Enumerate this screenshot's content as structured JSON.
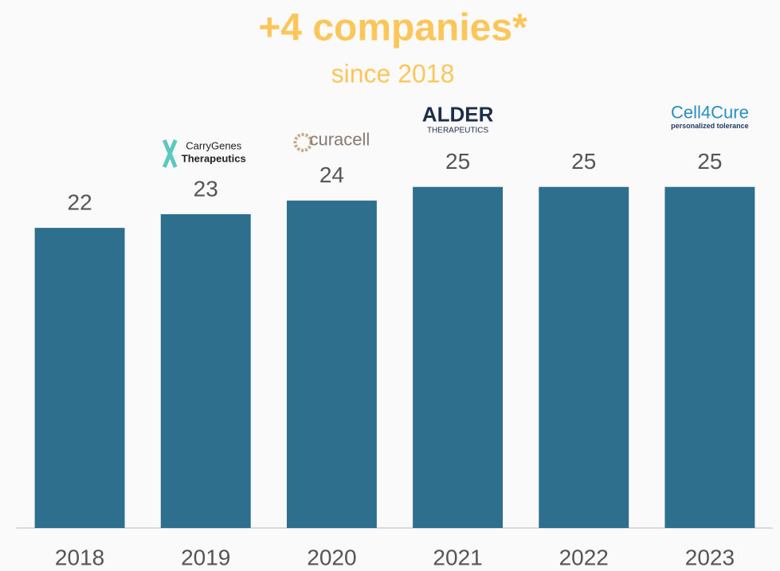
{
  "chart_data": {
    "type": "bar",
    "title": "+4 companies*",
    "subtitle": "since 2018",
    "categories": [
      "2018",
      "2019",
      "2020",
      "2021",
      "2022",
      "2023"
    ],
    "values": [
      22,
      23,
      24,
      25,
      25,
      25
    ],
    "color": "#2e6f8e",
    "ylim": [
      0,
      38
    ],
    "logos": [
      null,
      [
        "CarryGenes",
        "Therapeutics"
      ],
      [
        "curacell"
      ],
      [
        "ALDER",
        "THERAPEUTICS"
      ],
      null,
      [
        "Cell4Cure",
        "personalized tolerance"
      ]
    ]
  }
}
